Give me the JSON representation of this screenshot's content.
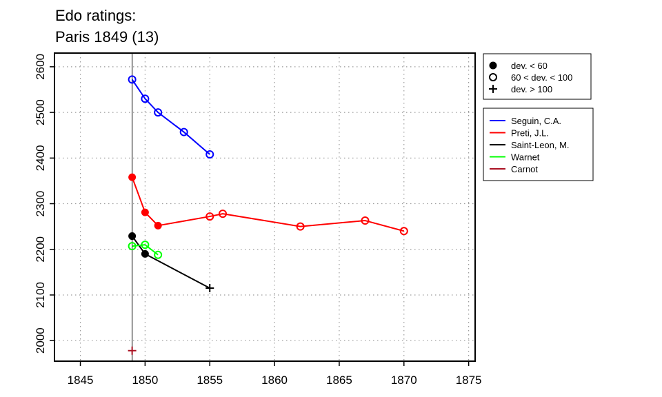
{
  "chart_data": {
    "type": "line",
    "title": [
      "Edo ratings:",
      "Paris 1849 (13)"
    ],
    "xlim": [
      1843,
      1875.5
    ],
    "ylim": [
      1955,
      2630
    ],
    "x_ticks": [
      1845,
      1850,
      1855,
      1860,
      1865,
      1870,
      1875
    ],
    "y_ticks": [
      2000,
      2100,
      2200,
      2300,
      2400,
      2500,
      2600
    ],
    "grid": true,
    "reference_line_x": 1849,
    "marker_legend": [
      {
        "marker": "filled-circle",
        "label": "dev. < 60"
      },
      {
        "marker": "open-circle",
        "label": "60 < dev. < 100"
      },
      {
        "marker": "plus",
        "label": "dev. > 100"
      }
    ],
    "series": [
      {
        "name": "Seguin, C.A.",
        "color": "#0000ff",
        "points": [
          {
            "x": 1849,
            "y": 2572,
            "marker": "open-circle"
          },
          {
            "x": 1850,
            "y": 2530,
            "marker": "open-circle"
          },
          {
            "x": 1851,
            "y": 2500,
            "marker": "open-circle"
          },
          {
            "x": 1853,
            "y": 2457,
            "marker": "open-circle"
          },
          {
            "x": 1855,
            "y": 2408,
            "marker": "open-circle"
          }
        ]
      },
      {
        "name": "Preti, J.L.",
        "color": "#ff0000",
        "points": [
          {
            "x": 1849,
            "y": 2358,
            "marker": "filled-circle"
          },
          {
            "x": 1850,
            "y": 2281,
            "marker": "filled-circle"
          },
          {
            "x": 1851,
            "y": 2252,
            "marker": "filled-circle"
          },
          {
            "x": 1855,
            "y": 2272,
            "marker": "open-circle"
          },
          {
            "x": 1856,
            "y": 2278,
            "marker": "open-circle"
          },
          {
            "x": 1862,
            "y": 2250,
            "marker": "open-circle"
          },
          {
            "x": 1867,
            "y": 2263,
            "marker": "open-circle"
          },
          {
            "x": 1870,
            "y": 2240,
            "marker": "open-circle"
          }
        ]
      },
      {
        "name": "Saint-Leon, M.",
        "color": "#000000",
        "points": [
          {
            "x": 1849,
            "y": 2229,
            "marker": "filled-circle"
          },
          {
            "x": 1850,
            "y": 2190,
            "marker": "filled-circle"
          },
          {
            "x": 1855,
            "y": 2115,
            "marker": "plus"
          }
        ]
      },
      {
        "name": "Warnet",
        "color": "#00ff00",
        "points": [
          {
            "x": 1849,
            "y": 2207,
            "marker": "open-circle"
          },
          {
            "x": 1850,
            "y": 2210,
            "marker": "open-circle"
          },
          {
            "x": 1851,
            "y": 2188,
            "marker": "open-circle"
          }
        ]
      },
      {
        "name": "Carnot",
        "color": "#aa1122",
        "points": [
          {
            "x": 1849,
            "y": 1978,
            "marker": "plus"
          }
        ]
      }
    ]
  }
}
